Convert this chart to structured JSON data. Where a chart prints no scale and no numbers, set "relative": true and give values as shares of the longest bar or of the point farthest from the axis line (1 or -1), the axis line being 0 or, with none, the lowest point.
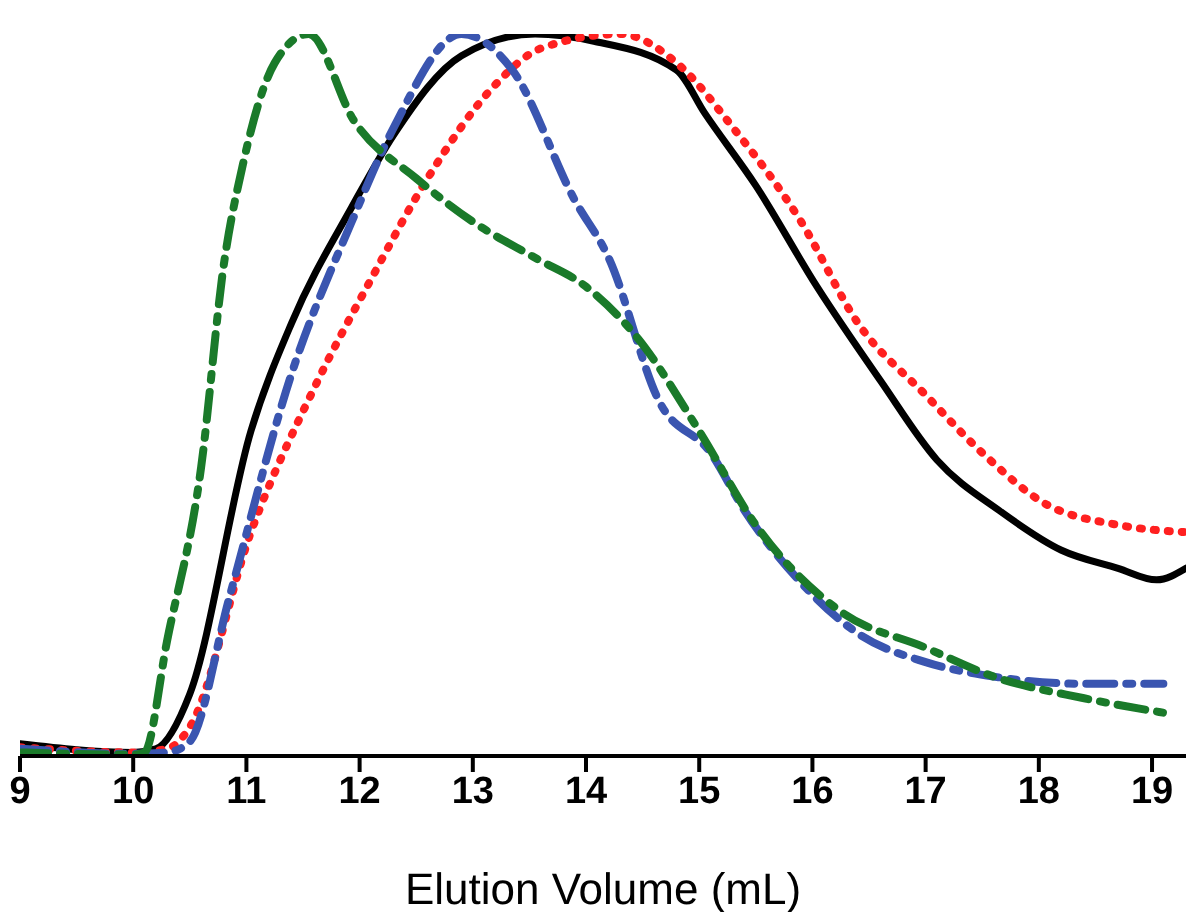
{
  "chart_data": {
    "type": "line",
    "xlabel": "Elution Volume (mL)",
    "relative": true,
    "xlim": [
      9,
      19.3
    ],
    "xticks": [
      9,
      10,
      11,
      12,
      13,
      14,
      15,
      16,
      17,
      18,
      19
    ],
    "marker": "none",
    "series": [
      {
        "color": "#000000",
        "line_style": "solid",
        "x": [
          9,
          10,
          10.2,
          10.5,
          11.04,
          11.4,
          11.93,
          12.3,
          12.9,
          13.55,
          14.07,
          14.8,
          15.05,
          15.5,
          16.04,
          16.6,
          17.1,
          17.65,
          18.2,
          18.7,
          19.04,
          19.3
        ],
        "values": [
          0.017,
          0.005,
          0.01,
          0.086,
          0.45,
          0.6,
          0.76,
          0.86,
          0.97,
          1,
          0.99,
          0.95,
          0.89,
          0.79,
          0.65,
          0.52,
          0.41,
          0.34,
          0.285,
          0.26,
          0.244,
          0.26
        ]
      },
      {
        "color": "#ff2020",
        "line_style": "dotted",
        "x": [
          9,
          10,
          10.3,
          10.5,
          11.04,
          11.6,
          12.1,
          12.6,
          13.2,
          13.6,
          14.3,
          14.8,
          15.3,
          15.9,
          16.4,
          17,
          17.5,
          18.05,
          18.7,
          19.3
        ],
        "values": [
          0.012,
          0.005,
          0.01,
          0.04,
          0.31,
          0.51,
          0.66,
          0.8,
          0.93,
          0.98,
          1,
          0.96,
          0.87,
          0.74,
          0.6,
          0.5,
          0.42,
          0.35,
          0.32,
          0.31
        ]
      },
      {
        "color": "#3a55b0",
        "line_style": "dashed",
        "x": [
          9,
          10,
          10.3,
          10.5,
          10.85,
          11.4,
          11.93,
          12.3,
          12.9,
          13.35,
          13.9,
          14.2,
          14.65,
          15.1,
          15.4,
          15.9,
          16.4,
          17,
          17.6,
          18.4,
          19.1
        ],
        "values": [
          0.01,
          0.003,
          0.005,
          0.02,
          0.22,
          0.53,
          0.74,
          0.87,
          1,
          0.95,
          0.77,
          0.69,
          0.49,
          0.42,
          0.34,
          0.24,
          0.17,
          0.13,
          0.11,
          0.1,
          0.1
        ]
      },
      {
        "color": "#1a7a2a",
        "line_style": "dashed",
        "x": [
          9,
          10,
          10.1,
          10.3,
          10.6,
          10.8,
          10.97,
          11.25,
          11.55,
          11.95,
          12.5,
          13,
          13.55,
          14,
          14.45,
          15,
          15.5,
          16.25,
          17,
          17.6,
          18.4,
          19.1
        ],
        "values": [
          0.005,
          0.002,
          0.005,
          0.16,
          0.4,
          0.68,
          0.82,
          0.96,
          1,
          0.88,
          0.8,
          0.74,
          0.69,
          0.65,
          0.58,
          0.45,
          0.32,
          0.2,
          0.15,
          0.11,
          0.08,
          0.06
        ]
      }
    ]
  }
}
